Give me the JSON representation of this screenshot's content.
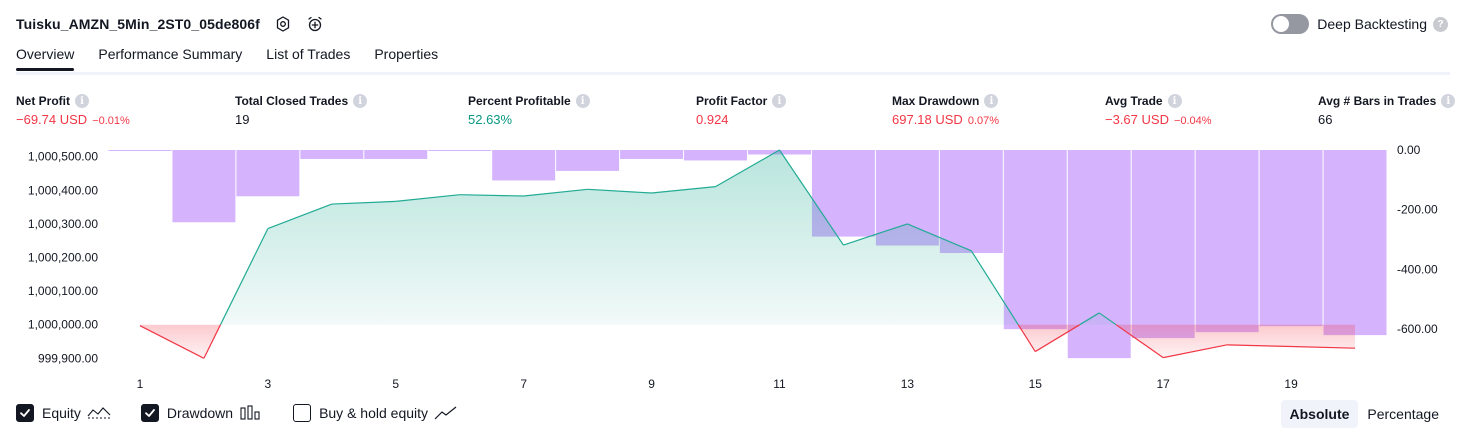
{
  "header": {
    "title": "Tuisku_AMZN_5Min_2ST0_05de806f",
    "settings_icon": "gear-icon",
    "alert_icon": "alarm-clock-plus-icon",
    "deep_backtesting_label": "Deep Backtesting",
    "deep_backtesting_on": false,
    "help_symbol": "?"
  },
  "tabs": [
    {
      "label": "Overview",
      "active": true
    },
    {
      "label": "Performance Summary",
      "active": false
    },
    {
      "label": "List of Trades",
      "active": false
    },
    {
      "label": "Properties",
      "active": false
    }
  ],
  "metrics": [
    {
      "label": "Net Profit",
      "value": "−69.74 USD",
      "pct": "−0.01%",
      "tone": "neg"
    },
    {
      "label": "Total Closed Trades",
      "value": "19",
      "pct": "",
      "tone": "neu"
    },
    {
      "label": "Percent Profitable",
      "value": "52.63%",
      "pct": "",
      "tone": "pos"
    },
    {
      "label": "Profit Factor",
      "value": "0.924",
      "pct": "",
      "tone": "neg"
    },
    {
      "label": "Max Drawdown",
      "value": "697.18 USD",
      "pct": "0.07%",
      "tone": "neg"
    },
    {
      "label": "Avg Trade",
      "value": "−3.67 USD",
      "pct": "−0.04%",
      "tone": "neg"
    },
    {
      "label": "Avg # Bars in Trades",
      "value": "66",
      "pct": "",
      "tone": "neu"
    }
  ],
  "info_symbol": "i",
  "chart_data": {
    "type": "line",
    "left_axis": {
      "ticks": [
        "1,000,500.00",
        "1,000,400.00",
        "1,000,300.00",
        "1,000,200.00",
        "1,000,100.00",
        "1,000,000.00",
        "999,900.00"
      ],
      "range": [
        999880,
        1000520
      ],
      "baseline": 1000000
    },
    "right_axis": {
      "ticks": [
        "0.00",
        "-200.00",
        "-400.00",
        "-600.00"
      ],
      "range": [
        -720,
        0
      ]
    },
    "x_ticks": [
      "1",
      "3",
      "5",
      "7",
      "9",
      "11",
      "13",
      "15",
      "17",
      "19"
    ],
    "x_range": [
      1,
      20
    ],
    "series": [
      {
        "kind": "equity",
        "color_up": "#22ab94",
        "color_down": "#f23645",
        "x": [
          1,
          2,
          3,
          4,
          5,
          6,
          7,
          8,
          9,
          10,
          11,
          12,
          13,
          14,
          15,
          16,
          17,
          18,
          19,
          20
        ],
        "values": [
          999997,
          999900,
          1000286,
          1000359,
          1000367,
          1000387,
          1000383,
          1000403,
          1000392,
          1000411,
          1000520,
          1000237,
          1000300,
          1000220,
          999920,
          1000035,
          999902,
          999940,
          999935,
          999930
        ]
      },
      {
        "kind": "drawdown",
        "color": "#d5b3fd",
        "values": [
          -3,
          -242,
          -155,
          -30,
          -30,
          -1,
          -102,
          -70,
          -30,
          -35,
          -15,
          -290,
          -320,
          -345,
          -600,
          -697,
          -630,
          -610,
          -590,
          -620
        ]
      }
    ],
    "legend": [
      {
        "label": "Equity",
        "checked": true,
        "icon": "equity-line-icon"
      },
      {
        "label": "Drawdown",
        "checked": true,
        "icon": "drawdown-bars-icon"
      },
      {
        "label": "Buy & hold equity",
        "checked": false,
        "icon": "buy-hold-line-icon"
      }
    ]
  },
  "mode": {
    "options": [
      {
        "label": "Absolute",
        "active": true
      },
      {
        "label": "Percentage",
        "active": false
      }
    ]
  }
}
